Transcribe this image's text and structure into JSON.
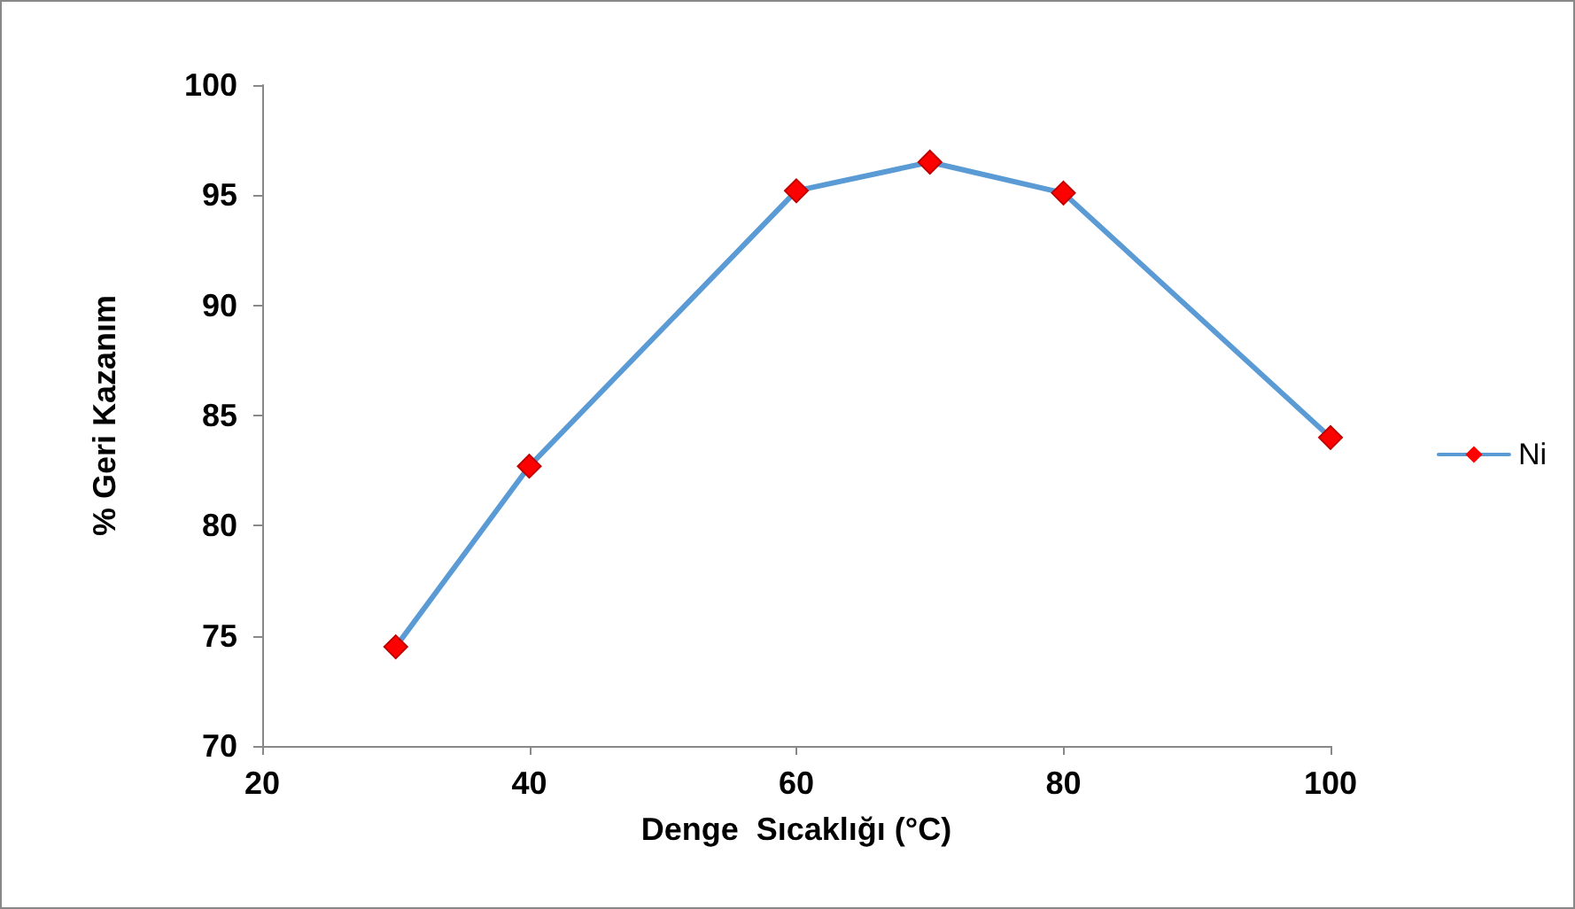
{
  "chart_data": {
    "type": "line",
    "xlabel": "Denge  Sıcaklığı (°C)",
    "ylabel": "% Geri Kazanım",
    "x": [
      30,
      40,
      60,
      70,
      80,
      100
    ],
    "series": [
      {
        "name": "Ni",
        "color": "#5b9bd5",
        "colors": [
          "#ff0000",
          "#ff0000",
          "#ff0000",
          "#ff0000",
          "#ff0000",
          "#ff0000"
        ],
        "values": [
          74.5,
          82.7,
          95.2,
          96.5,
          95.1,
          84.0
        ]
      }
    ],
    "xlim": [
      20,
      100
    ],
    "xticks": [
      20,
      40,
      60,
      80,
      100
    ],
    "ylim": [
      70,
      100
    ],
    "yticks": [
      70,
      75,
      80,
      85,
      90,
      95,
      100
    ],
    "grid": false,
    "legend": "right",
    "marker": "diamond",
    "line_style": "solid"
  }
}
